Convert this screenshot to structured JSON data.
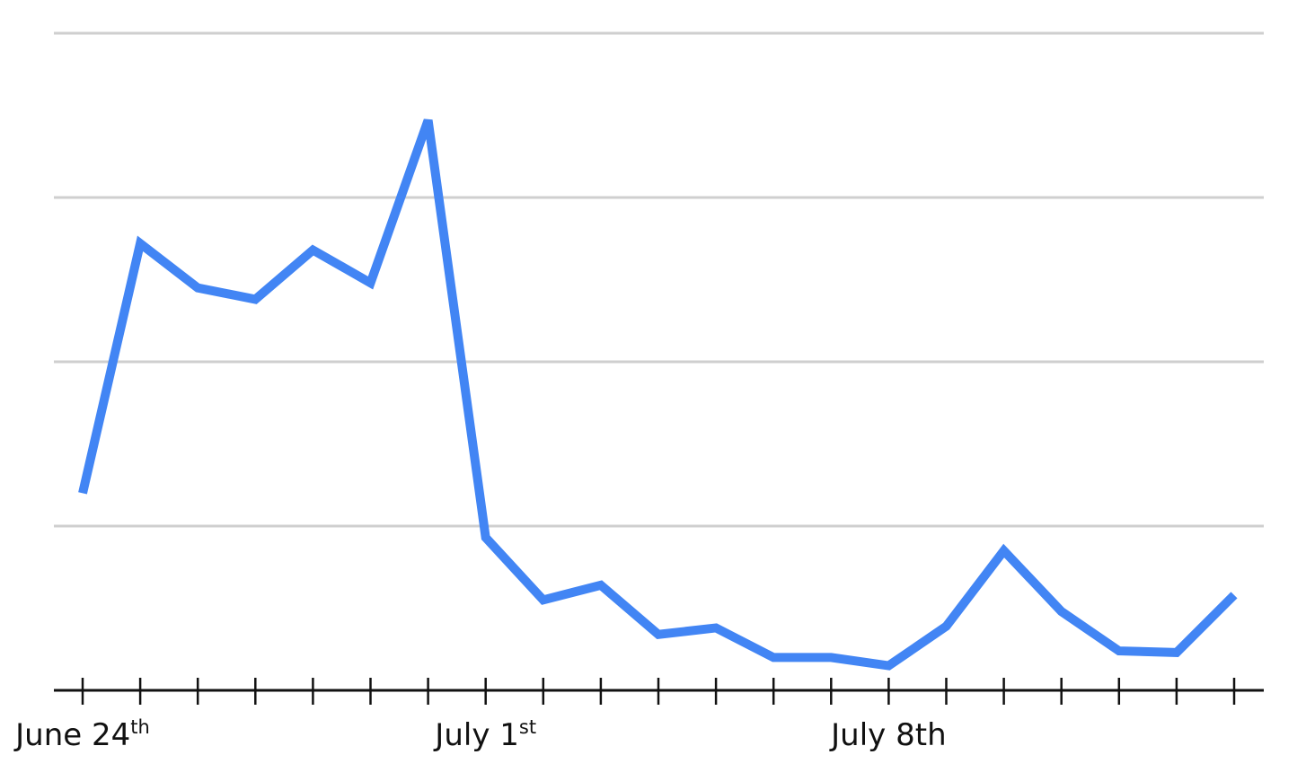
{
  "chart_data": {
    "type": "line",
    "title": "",
    "xlabel": "",
    "ylabel": "",
    "x": [
      "2024-06-24",
      "2024-06-25",
      "2024-06-26",
      "2024-06-27",
      "2024-06-28",
      "2024-06-29",
      "2024-06-30",
      "2024-07-01",
      "2024-07-02",
      "2024-07-03",
      "2024-07-04",
      "2024-07-05",
      "2024-07-06",
      "2024-07-07",
      "2024-07-08",
      "2024-07-09",
      "2024-07-10",
      "2024-07-11",
      "2024-07-12",
      "2024-07-13",
      "2024-07-14"
    ],
    "series": [
      {
        "values": [
          1.2,
          2.72,
          2.45,
          2.38,
          2.68,
          2.48,
          3.47,
          0.93,
          0.55,
          0.64,
          0.34,
          0.38,
          0.2,
          0.2,
          0.15,
          0.39,
          0.85,
          0.48,
          0.24,
          0.23,
          0.58
        ]
      }
    ],
    "ylim": [
      0,
      4
    ],
    "y_gridlines": [
      1,
      2,
      3,
      4
    ],
    "y_tick_labels_visible": false,
    "grid": true,
    "x_tick_labels": [
      {
        "date": "2024-06-24",
        "text": "June 24",
        "suffix": "th"
      },
      {
        "date": "2024-07-01",
        "text": "July 1",
        "suffix": "st"
      },
      {
        "date": "2024-07-08",
        "text": "July 8th",
        "suffix": ""
      }
    ],
    "line_color": "#4285f4",
    "grid_color": "#cfcfcf",
    "axis_color": "#111111"
  }
}
